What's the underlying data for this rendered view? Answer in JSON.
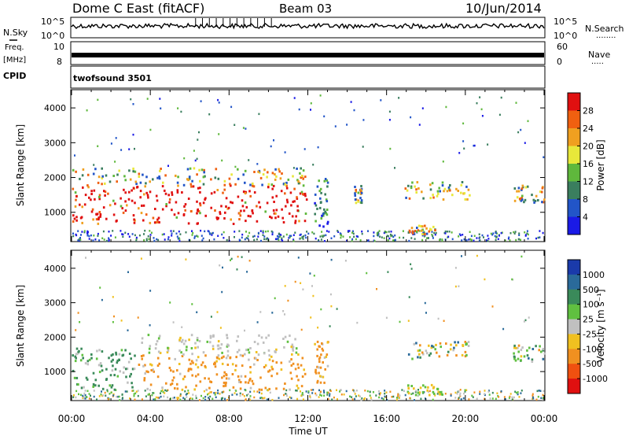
{
  "header": {
    "station": "Dome C East (fitACF)",
    "beam": "Beam 03",
    "date": "10/Jun/2014"
  },
  "left_labels": {
    "nsky": "N.Sky",
    "freq": "Freq.",
    "freq_unit": "[MHz]",
    "cpid": "CPID"
  },
  "right_labels": {
    "nsearch": "N.Search",
    "nsearch_dots": "........",
    "nave": "Nave",
    "nave_dots": "....."
  },
  "cpid_text": "twofsound 3501",
  "noise_axis": {
    "top": "10^5",
    "bottom": "10^0"
  },
  "freq_axis": {
    "top": "10",
    "bottom": "8"
  },
  "nave_axis": {
    "top": "60",
    "bottom": "0"
  },
  "chart_data": [
    {
      "type": "heatmap",
      "panel": "power",
      "ylabel": "Slant Range [km]",
      "xlabel": "",
      "x_ticks": [
        "00:00",
        "04:00",
        "08:00",
        "12:00",
        "16:00",
        "20:00",
        "00:00"
      ],
      "y_ticks": [
        "1000",
        "2000",
        "3000",
        "4000"
      ],
      "ylim": [
        180,
        4500
      ],
      "colorbar": {
        "label": "Power [dB]",
        "ticks": [
          "4",
          "8",
          "12",
          "16",
          "20",
          "24",
          "28"
        ],
        "colors": [
          "#1a1ae6",
          "#2255c8",
          "#3a7e5e",
          "#5fb83c",
          "#e8e83a",
          "#f0a020",
          "#f06010",
          "#e01010"
        ]
      },
      "regions": [
        {
          "t0": 0.0,
          "t1": 12.0,
          "r0": 700,
          "r1": 1800,
          "level": "high"
        },
        {
          "t0": 0.0,
          "t1": 12.0,
          "r0": 1800,
          "r1": 2300,
          "level": "mid"
        },
        {
          "t0": 12.3,
          "t1": 13.0,
          "r0": 600,
          "r1": 2000,
          "level": "low"
        },
        {
          "t0": 14.3,
          "t1": 14.7,
          "r0": 1300,
          "r1": 1800,
          "level": "mid"
        },
        {
          "t0": 16.9,
          "t1": 20.2,
          "r0": 1400,
          "r1": 1900,
          "level": "mid"
        },
        {
          "t0": 17.0,
          "t1": 18.5,
          "r0": 400,
          "r1": 650,
          "level": "mid"
        },
        {
          "t0": 22.4,
          "t1": 24.0,
          "r0": 1300,
          "r1": 1800,
          "level": "mid"
        }
      ]
    },
    {
      "type": "heatmap",
      "panel": "velocity",
      "ylabel": "Slant Range [km]",
      "xlabel": "Time UT",
      "x_ticks": [
        "00:00",
        "04:00",
        "08:00",
        "12:00",
        "16:00",
        "20:00",
        "00:00"
      ],
      "y_ticks": [
        "1000",
        "2000",
        "3000",
        "4000"
      ],
      "ylim": [
        180,
        4500
      ],
      "colorbar": {
        "label": "Velocity [m s⁻¹]",
        "ticks": [
          "1000",
          "500",
          "100",
          "25",
          "-25",
          "-100",
          "-500",
          "-1000"
        ],
        "colors": [
          "#1a3aaa",
          "#2a6a9a",
          "#3a8a5a",
          "#60c040",
          "#c0c0c0",
          "#f0c020",
          "#f09020",
          "#f05010",
          "#e01010"
        ]
      },
      "regions": [
        {
          "t0": 0.0,
          "t1": 3.3,
          "r0": 500,
          "r1": 1700,
          "level": "toward"
        },
        {
          "t0": 3.3,
          "t1": 12.0,
          "r0": 500,
          "r1": 1500,
          "level": "away"
        },
        {
          "t0": 3.5,
          "t1": 11.5,
          "r0": 1500,
          "r1": 2100,
          "level": "near-zero"
        },
        {
          "t0": 12.3,
          "t1": 13.0,
          "r0": 700,
          "r1": 2000,
          "level": "away"
        },
        {
          "t0": 16.9,
          "t1": 20.2,
          "r0": 1400,
          "r1": 1900,
          "level": "mixed"
        },
        {
          "t0": 17.0,
          "t1": 18.8,
          "r0": 350,
          "r1": 650,
          "level": "toward-light"
        },
        {
          "t0": 22.4,
          "t1": 24.0,
          "r0": 1300,
          "r1": 1800,
          "level": "mixed"
        }
      ]
    }
  ]
}
